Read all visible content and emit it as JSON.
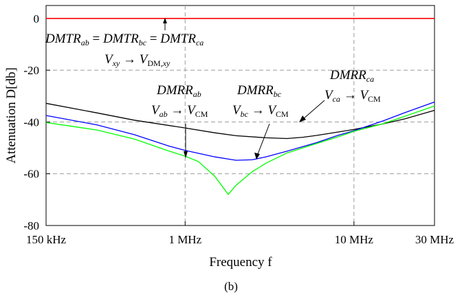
{
  "panel_label": "(b)",
  "chart_data": {
    "type": "line",
    "xlabel": "Frequency f",
    "ylabel": "Attenuation D[db]",
    "xscale": "log",
    "xlim": [
      150000,
      30000000
    ],
    "ylim": [
      -80,
      5
    ],
    "grid": true,
    "x_ticks": [
      {
        "value": 150000,
        "label": "150 kHz"
      },
      {
        "value": 1000000,
        "label": "1 MHz"
      },
      {
        "value": 10000000,
        "label": "10 MHz"
      },
      {
        "value": 30000000,
        "label": "30 MHz"
      }
    ],
    "y_ticks": [
      {
        "value": 0,
        "label": "0"
      },
      {
        "value": -20,
        "label": "-20"
      },
      {
        "value": -40,
        "label": "-40"
      },
      {
        "value": -60,
        "label": "-60"
      },
      {
        "value": -80,
        "label": "-80"
      }
    ],
    "series": [
      {
        "key": "red",
        "color": "#ff0000",
        "points": [
          [
            150000,
            0
          ],
          [
            30000000,
            0
          ]
        ]
      },
      {
        "key": "black",
        "color": "#000000",
        "points": [
          [
            150000,
            -32.8
          ],
          [
            300000,
            -36.5
          ],
          [
            500000,
            -39.3
          ],
          [
            1000000,
            -42.3
          ],
          [
            1500000,
            -44.2
          ],
          [
            2000000,
            -45.3
          ],
          [
            3000000,
            -46.1
          ],
          [
            4000000,
            -46.4
          ],
          [
            5000000,
            -45.9
          ],
          [
            6000000,
            -45.2
          ],
          [
            8000000,
            -43.9
          ],
          [
            10000000,
            -42.9
          ],
          [
            15000000,
            -40.7
          ],
          [
            20000000,
            -38.8
          ],
          [
            30000000,
            -35.5
          ]
        ]
      },
      {
        "key": "blue",
        "color": "#0000ff",
        "points": [
          [
            150000,
            -37.5
          ],
          [
            300000,
            -41.1
          ],
          [
            500000,
            -44.9
          ],
          [
            800000,
            -49.3
          ],
          [
            1000000,
            -51.0
          ],
          [
            1500000,
            -53.5
          ],
          [
            2000000,
            -54.8
          ],
          [
            2500000,
            -54.6
          ],
          [
            3000000,
            -53.5
          ],
          [
            4000000,
            -51.3
          ],
          [
            6000000,
            -48.0
          ],
          [
            8000000,
            -45.2
          ],
          [
            10000000,
            -43.4
          ],
          [
            15000000,
            -39.5
          ],
          [
            20000000,
            -36.4
          ],
          [
            30000000,
            -32.3
          ]
        ]
      },
      {
        "key": "green",
        "color": "#00ff00",
        "points": [
          [
            150000,
            -40.2
          ],
          [
            300000,
            -43.1
          ],
          [
            500000,
            -46.6
          ],
          [
            800000,
            -51.2
          ],
          [
            1000000,
            -53.2
          ],
          [
            1200000,
            -55.3
          ],
          [
            1500000,
            -61.0
          ],
          [
            1800000,
            -68.0
          ],
          [
            2000000,
            -64.5
          ],
          [
            2500000,
            -59.2
          ],
          [
            3000000,
            -56.0
          ],
          [
            4000000,
            -52.0
          ],
          [
            6000000,
            -48.3
          ],
          [
            8000000,
            -45.8
          ],
          [
            10000000,
            -43.6
          ],
          [
            15000000,
            -40.6
          ],
          [
            20000000,
            -37.8
          ],
          [
            30000000,
            -33.8
          ]
        ]
      }
    ],
    "annotations": [
      {
        "key": "dmtr",
        "line1": "DMTR_ab = DMTR_bc = DMTR_ca",
        "line2": "V_xy → V_DM,xy"
      },
      {
        "key": "dmrr_ab",
        "line1": "DMRR_ab",
        "line2": "V_ab → V_CM"
      },
      {
        "key": "dmrr_bc",
        "line1": "DMRR_bc",
        "line2": "V_bc → V_CM"
      },
      {
        "key": "dmrr_ca",
        "line1": "DMRR_ca",
        "line2": "V_ca → V_CM"
      }
    ]
  }
}
